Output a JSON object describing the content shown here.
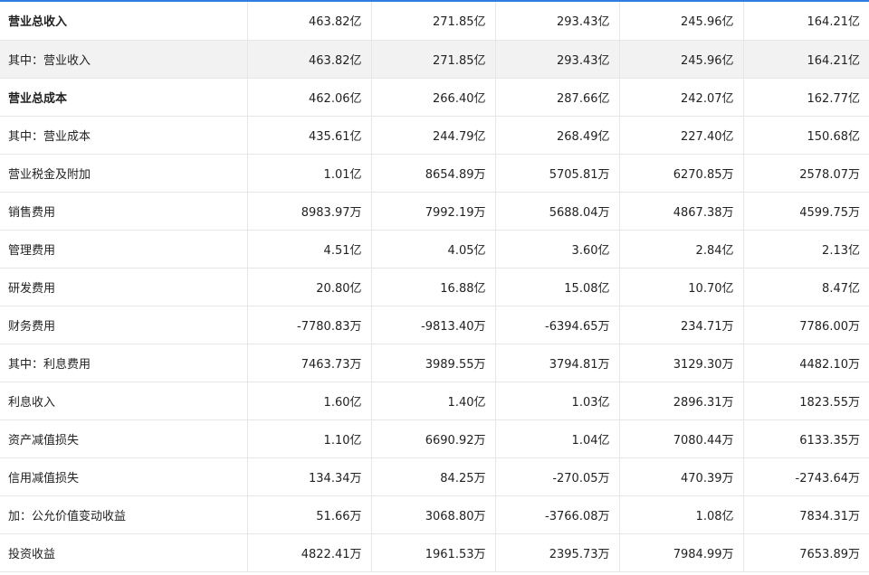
{
  "table": {
    "rows": [
      {
        "label": "营业总收入",
        "bold": true,
        "shaded": false,
        "values": [
          "463.82亿",
          "271.85亿",
          "293.43亿",
          "245.96亿",
          "164.21亿"
        ]
      },
      {
        "label": "其中：营业收入",
        "bold": false,
        "shaded": true,
        "values": [
          "463.82亿",
          "271.85亿",
          "293.43亿",
          "245.96亿",
          "164.21亿"
        ]
      },
      {
        "label": "营业总成本",
        "bold": true,
        "shaded": false,
        "values": [
          "462.06亿",
          "266.40亿",
          "287.66亿",
          "242.07亿",
          "162.77亿"
        ]
      },
      {
        "label": "其中：营业成本",
        "bold": false,
        "shaded": false,
        "values": [
          "435.61亿",
          "244.79亿",
          "268.49亿",
          "227.40亿",
          "150.68亿"
        ]
      },
      {
        "label": "营业税金及附加",
        "bold": false,
        "shaded": false,
        "values": [
          "1.01亿",
          "8654.89万",
          "5705.81万",
          "6270.85万",
          "2578.07万"
        ]
      },
      {
        "label": "销售费用",
        "bold": false,
        "shaded": false,
        "values": [
          "8983.97万",
          "7992.19万",
          "5688.04万",
          "4867.38万",
          "4599.75万"
        ]
      },
      {
        "label": "管理费用",
        "bold": false,
        "shaded": false,
        "values": [
          "4.51亿",
          "4.05亿",
          "3.60亿",
          "2.84亿",
          "2.13亿"
        ]
      },
      {
        "label": "研发费用",
        "bold": false,
        "shaded": false,
        "values": [
          "20.80亿",
          "16.88亿",
          "15.08亿",
          "10.70亿",
          "8.47亿"
        ]
      },
      {
        "label": "财务费用",
        "bold": false,
        "shaded": false,
        "values": [
          "-7780.83万",
          "-9813.40万",
          "-6394.65万",
          "234.71万",
          "7786.00万"
        ]
      },
      {
        "label": "其中：利息费用",
        "bold": false,
        "shaded": false,
        "values": [
          "7463.73万",
          "3989.55万",
          "3794.81万",
          "3129.30万",
          "4482.10万"
        ]
      },
      {
        "label": "利息收入",
        "bold": false,
        "shaded": false,
        "values": [
          "1.60亿",
          "1.40亿",
          "1.03亿",
          "2896.31万",
          "1823.55万"
        ]
      },
      {
        "label": "资产减值损失",
        "bold": false,
        "shaded": false,
        "values": [
          "1.10亿",
          "6690.92万",
          "1.04亿",
          "7080.44万",
          "6133.35万"
        ]
      },
      {
        "label": "信用减值损失",
        "bold": false,
        "shaded": false,
        "values": [
          "134.34万",
          "84.25万",
          "-270.05万",
          "470.39万",
          "-2743.64万"
        ]
      },
      {
        "label": "加：公允价值变动收益",
        "bold": false,
        "shaded": false,
        "values": [
          "51.66万",
          "3068.80万",
          "-3766.08万",
          "1.08亿",
          "7834.31万"
        ]
      },
      {
        "label": "投资收益",
        "bold": false,
        "shaded": false,
        "values": [
          "4822.41万",
          "1961.53万",
          "2395.73万",
          "7984.99万",
          "7653.89万"
        ]
      }
    ]
  }
}
